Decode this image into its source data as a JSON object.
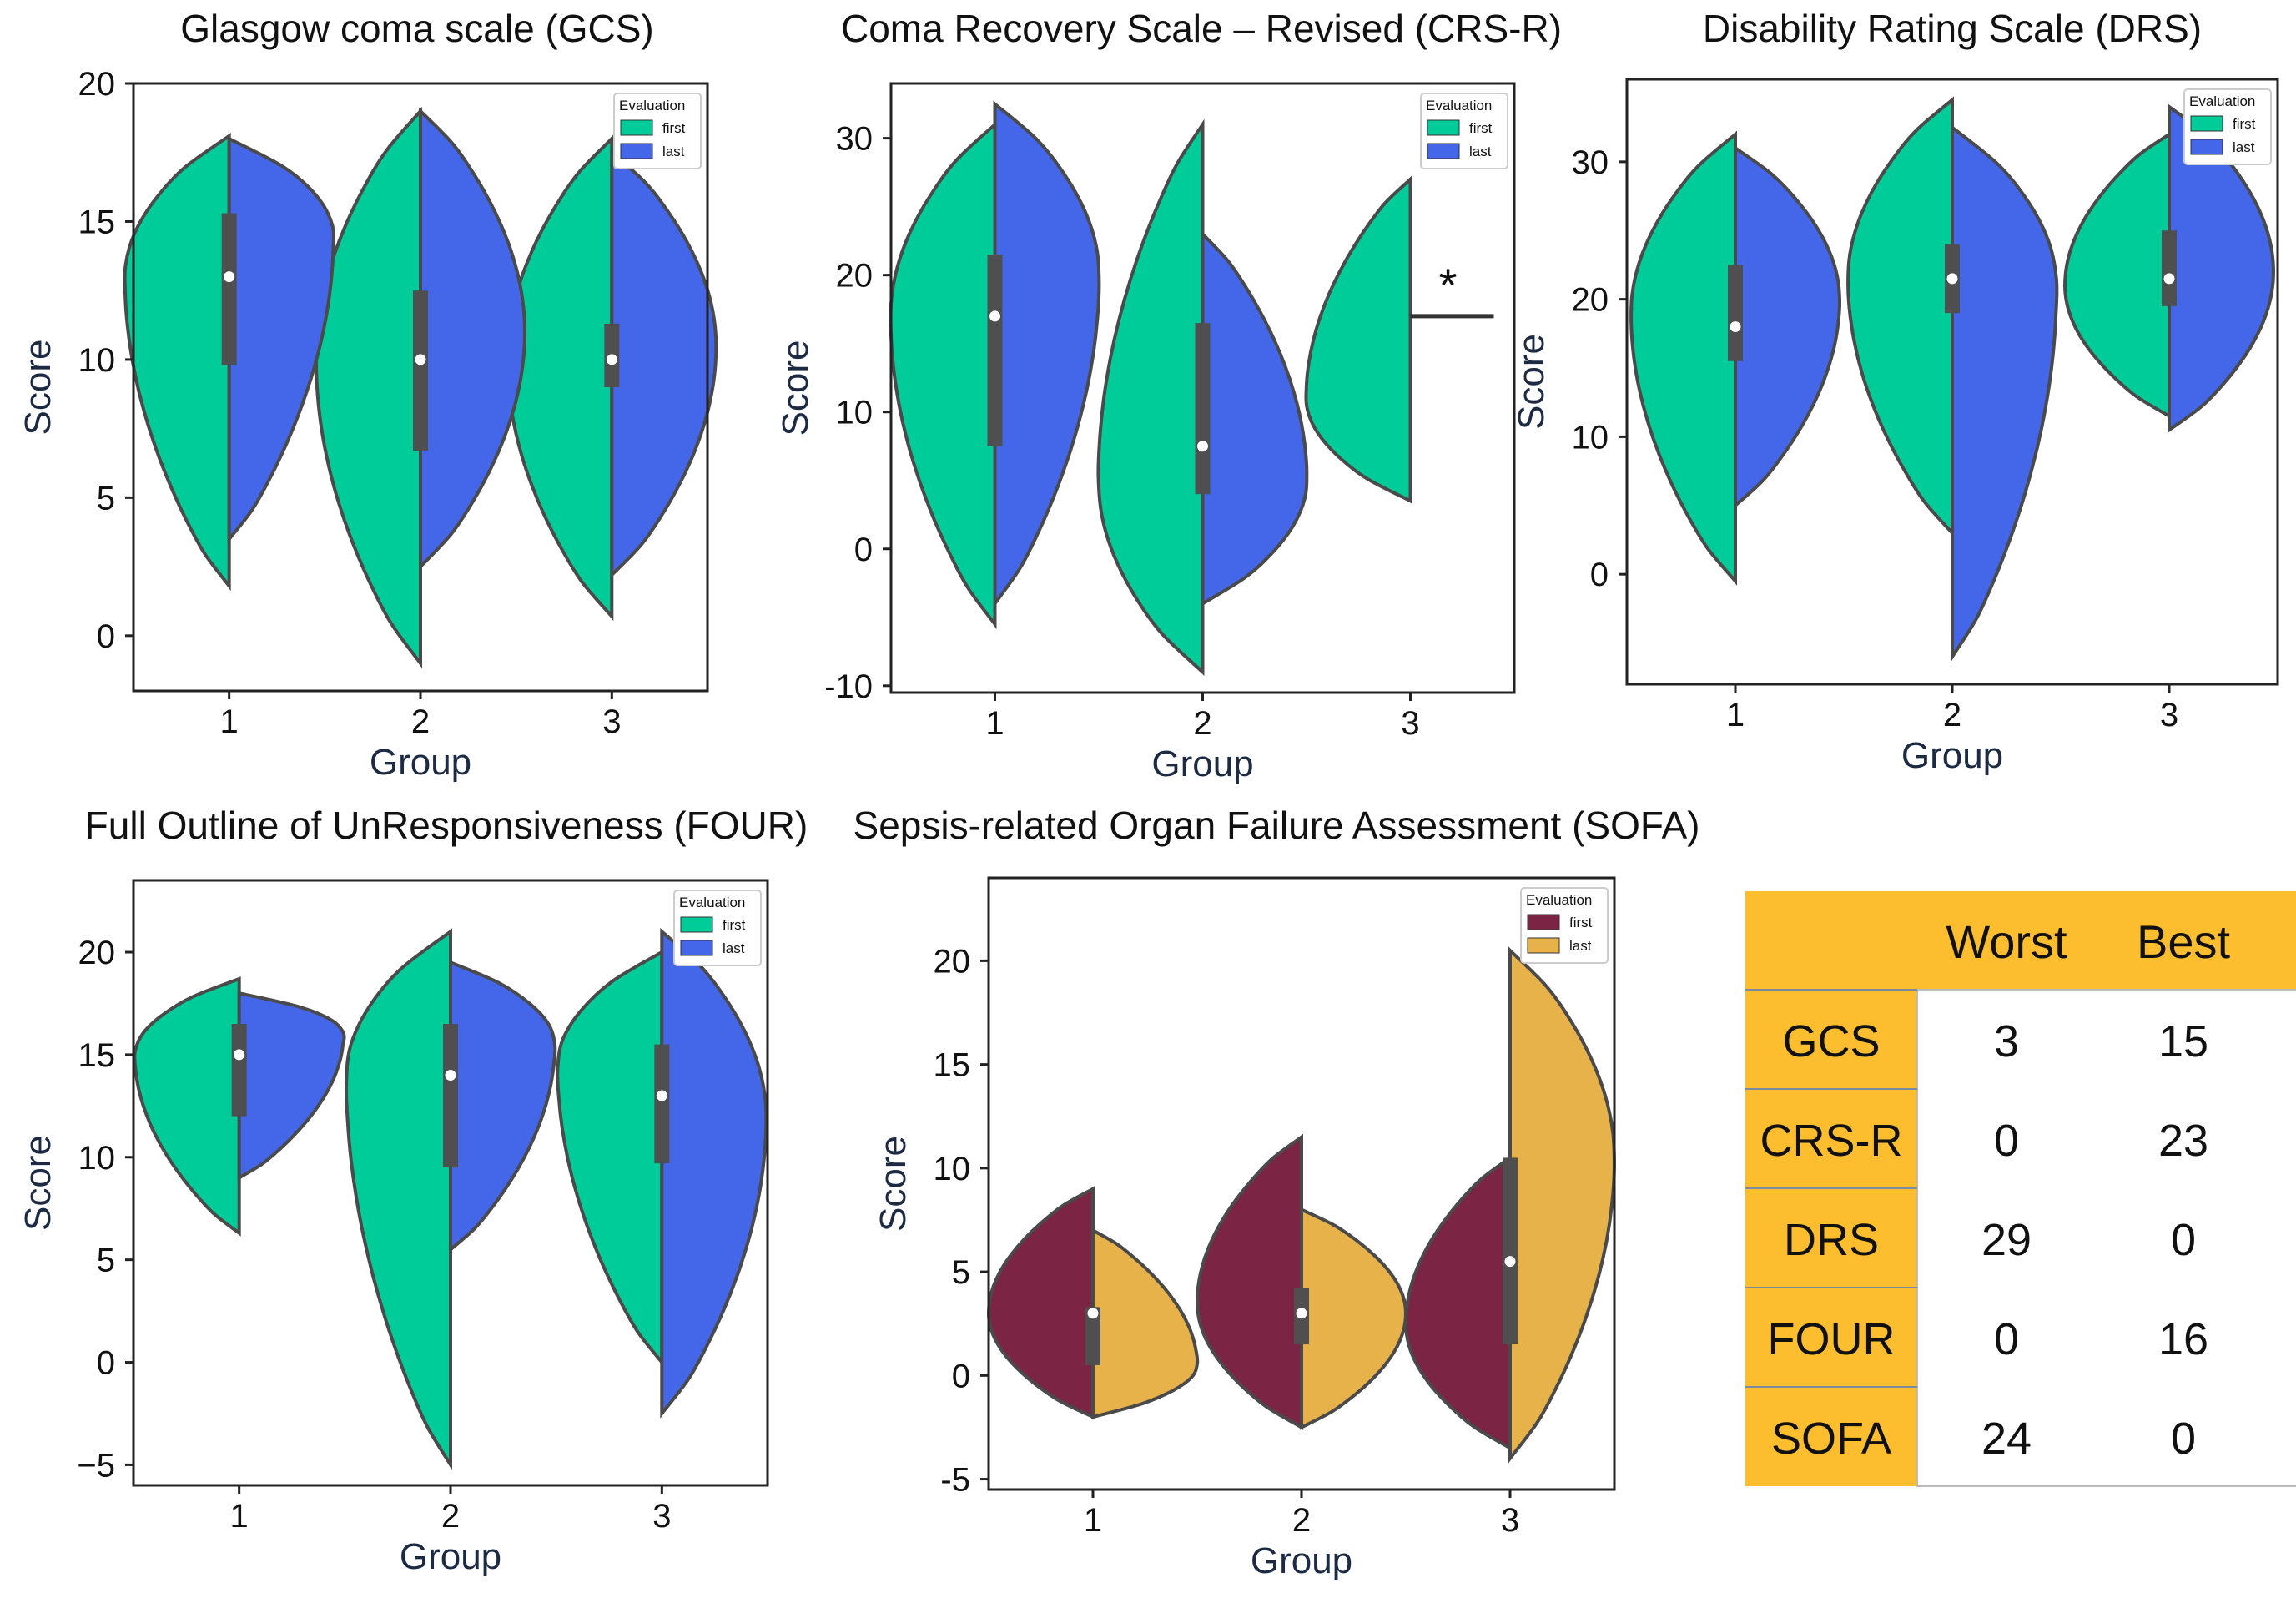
{
  "chart_data": [
    {
      "type": "violin",
      "title": "Glasgow coma scale (GCS)",
      "xlabel": "Group",
      "ylabel": "Score",
      "categories": [
        "1",
        "2",
        "3"
      ],
      "ylim": [
        -2,
        20
      ],
      "yticks": [
        "0",
        "5",
        "10",
        "15",
        "20"
      ],
      "legend": {
        "title": "Evaluation",
        "entries": [
          "first",
          "last"
        ],
        "colors": [
          "#00CC9A",
          "#4466E8"
        ],
        "position": "top-right"
      },
      "series": [
        {
          "name": "first",
          "groups": [
            {
              "min": 1.8,
              "max": 18.1,
              "widest": 13.0
            },
            {
              "min": -1.0,
              "max": 19.0,
              "widest": 10.0
            },
            {
              "min": 0.7,
              "max": 18.0,
              "widest": 10.0
            }
          ]
        },
        {
          "name": "last",
          "groups": [
            {
              "min": 3.5,
              "max": 18.0,
              "widest": 14.5
            },
            {
              "min": 2.5,
              "max": 19.0,
              "widest": 11.0
            },
            {
              "min": 2.2,
              "max": 17.5,
              "widest": 10.5
            }
          ]
        }
      ],
      "box": [
        {
          "q1": 9.8,
          "median": 13.0,
          "q3": 15.3
        },
        {
          "q1": 6.7,
          "median": 10.0,
          "q3": 12.5
        },
        {
          "q1": 9.0,
          "median": 10.0,
          "q3": 11.3
        }
      ],
      "annotations": []
    },
    {
      "type": "violin",
      "title": "Coma Recovery Scale – Revised (CRS-R)",
      "xlabel": "Group",
      "ylabel": "Score",
      "categories": [
        "1",
        "2",
        "3"
      ],
      "ylim": [
        -10.5,
        34
      ],
      "yticks": [
        "-10",
        "0",
        "10",
        "20",
        "30"
      ],
      "legend": {
        "title": "Evaluation",
        "entries": [
          "first",
          "last"
        ],
        "colors": [
          "#00CC9A",
          "#4466E8"
        ],
        "position": "top-right"
      },
      "series": [
        {
          "name": "first",
          "groups": [
            {
              "min": -5.5,
              "max": 31.0,
              "widest": 17.0
            },
            {
              "min": -9.0,
              "max": 31.0,
              "widest": 5.0
            },
            {
              "min": 3.5,
              "max": 27.0,
              "widest": 11.0
            }
          ]
        },
        {
          "name": "last",
          "groups": [
            {
              "min": -4.0,
              "max": 32.5,
              "widest": 20.0
            },
            {
              "min": -4.0,
              "max": 23.0,
              "widest": 5.0
            },
            null
          ]
        }
      ],
      "box": [
        {
          "q1": 7.5,
          "median": 17.0,
          "q3": 21.5
        },
        {
          "q1": 4.0,
          "median": 7.5,
          "q3": 16.5
        },
        null
      ],
      "annotations": [
        {
          "text": "*",
          "group": 3,
          "value": 17.0
        }
      ]
    },
    {
      "type": "violin",
      "title": "Disability Rating Scale (DRS)",
      "xlabel": "Group",
      "ylabel": "Score",
      "categories": [
        "1",
        "2",
        "3"
      ],
      "ylim": [
        -8,
        36
      ],
      "yticks": [
        "0",
        "10",
        "20",
        "30"
      ],
      "legend": {
        "title": "Evaluation",
        "entries": [
          "first",
          "last"
        ],
        "colors": [
          "#00CC9A",
          "#4466E8"
        ],
        "position": "top-right"
      },
      "series": [
        {
          "name": "first",
          "groups": [
            {
              "min": -0.5,
              "max": 32.0,
              "widest": 19.0
            },
            {
              "min": 3.0,
              "max": 34.5,
              "widest": 21.5
            },
            {
              "min": 11.5,
              "max": 32.0,
              "widest": 21.0
            }
          ]
        },
        {
          "name": "last",
          "groups": [
            {
              "min": 5.0,
              "max": 31.0,
              "widest": 20.0
            },
            {
              "min": -6.0,
              "max": 32.5,
              "widest": 21.0
            },
            {
              "min": 10.5,
              "max": 34.0,
              "widest": 22.0
            }
          ]
        }
      ],
      "box": [
        {
          "q1": 15.5,
          "median": 18.0,
          "q3": 22.5
        },
        {
          "q1": 19.0,
          "median": 21.5,
          "q3": 24.0
        },
        {
          "q1": 19.5,
          "median": 21.5,
          "q3": 25.0
        }
      ],
      "annotations": []
    },
    {
      "type": "violin",
      "title": "Full Outline of UnResponsiveness (FOUR)",
      "xlabel": "Group",
      "ylabel": "Score",
      "categories": [
        "1",
        "2",
        "3"
      ],
      "ylim": [
        -6,
        23.5
      ],
      "yticks": [
        "−5",
        "0",
        "5",
        "10",
        "15",
        "20"
      ],
      "legend": {
        "title": "Evaluation",
        "entries": [
          "first",
          "last"
        ],
        "colors": [
          "#00CC9A",
          "#4466E8"
        ],
        "position": "top-right"
      },
      "series": [
        {
          "name": "first",
          "groups": [
            {
              "min": 6.3,
              "max": 18.7,
              "widest": 15.0
            },
            {
              "min": -5.0,
              "max": 21.0,
              "widest": 14.0
            },
            {
              "min": 0.0,
              "max": 20.0,
              "widest": 14.5
            }
          ]
        },
        {
          "name": "last",
          "groups": [
            {
              "min": 9.0,
              "max": 18.0,
              "widest": 16.0
            },
            {
              "min": 5.5,
              "max": 19.5,
              "widest": 15.5
            },
            {
              "min": -2.5,
              "max": 21.0,
              "widest": 12.0
            }
          ]
        }
      ],
      "box": [
        {
          "q1": 12.0,
          "median": 15.0,
          "q3": 16.5
        },
        {
          "q1": 9.5,
          "median": 14.0,
          "q3": 16.5
        },
        {
          "q1": 9.7,
          "median": 13.0,
          "q3": 15.5
        }
      ],
      "annotations": []
    },
    {
      "type": "violin",
      "title": "Sepsis-related Organ Failure Assessment (SOFA)",
      "xlabel": "Group",
      "ylabel": "Score",
      "categories": [
        "1",
        "2",
        "3"
      ],
      "ylim": [
        -5.5,
        24
      ],
      "yticks": [
        "-5",
        "0",
        "5",
        "10",
        "15",
        "20"
      ],
      "legend": {
        "title": "Evaluation",
        "entries": [
          "first",
          "last"
        ],
        "colors": [
          "#7B2444",
          "#E8B24A"
        ],
        "position": "top-right"
      },
      "series": [
        {
          "name": "first",
          "groups": [
            {
              "min": -2.0,
              "max": 9.0,
              "widest": 3.0
            },
            {
              "min": -2.5,
              "max": 11.5,
              "widest": 3.5
            },
            {
              "min": -3.5,
              "max": 10.5,
              "widest": 2.5
            }
          ]
        },
        {
          "name": "last",
          "groups": [
            {
              "min": -2.0,
              "max": 7.0,
              "widest": 0.5
            },
            {
              "min": -2.5,
              "max": 8.0,
              "widest": 3.0
            },
            {
              "min": -4.0,
              "max": 20.5,
              "widest": 10.5
            }
          ]
        }
      ],
      "box": [
        {
          "q1": 0.5,
          "median": 3.0,
          "q3": 3.3
        },
        {
          "q1": 1.5,
          "median": 3.0,
          "q3": 4.2
        },
        {
          "q1": 1.5,
          "median": 5.5,
          "q3": 10.5
        }
      ],
      "annotations": []
    },
    {
      "type": "table",
      "columns": [
        "",
        "Worst",
        "Best"
      ],
      "rows": [
        {
          "label": "GCS",
          "values": [
            "3",
            "15"
          ]
        },
        {
          "label": "CRS-R",
          "values": [
            "0",
            "23"
          ]
        },
        {
          "label": "DRS",
          "values": [
            "29",
            "0"
          ]
        },
        {
          "label": "FOUR",
          "values": [
            "0",
            "16"
          ]
        },
        {
          "label": "SOFA",
          "values": [
            "24",
            "0"
          ]
        }
      ]
    }
  ]
}
